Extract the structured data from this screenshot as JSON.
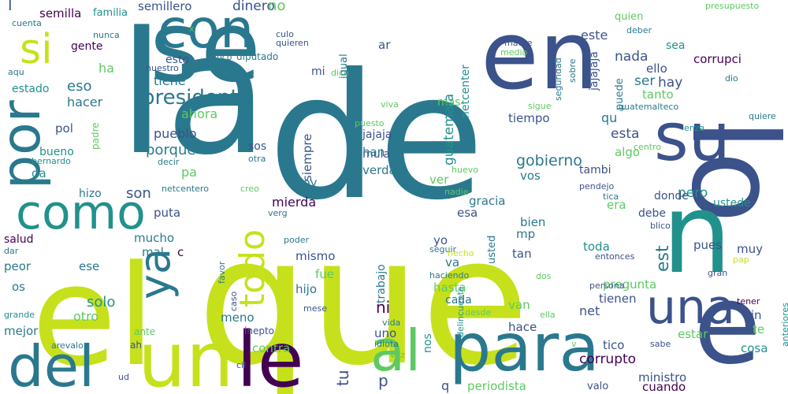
{
  "palette": {
    "dark_purple": "#440154",
    "indigo": "#3b528b",
    "teal": "#21918c",
    "green": "#5ec962",
    "lime": "#c6e11b"
  },
  "words": [
    {
      "text": "la",
      "size": 214,
      "color": "#2a788e"
    },
    {
      "text": "de",
      "size": 220,
      "color": "#2a788e"
    },
    {
      "text": "que",
      "size": 224,
      "color": "#c6e11b"
    },
    {
      "text": "el",
      "size": 176,
      "color": "#c6e11b"
    },
    {
      "text": "en",
      "size": 120,
      "color": "#3b528b"
    },
    {
      "text": "se",
      "size": 124,
      "color": "#2a788e"
    },
    {
      "text": "lo",
      "size": 150,
      "color": "#3b528b",
      "rotate": 90
    },
    {
      "text": "e",
      "size": 140,
      "color": "#3b528b"
    },
    {
      "text": "n",
      "size": 140,
      "color": "#21918c"
    },
    {
      "text": "su",
      "size": 84,
      "color": "#3b528b"
    },
    {
      "text": "con",
      "size": 68,
      "color": "#2a788e"
    },
    {
      "text": "por",
      "size": 68,
      "color": "#2a788e",
      "rotate": -90
    },
    {
      "text": "si",
      "size": 52,
      "color": "#c6e11b"
    },
    {
      "text": "como",
      "size": 60,
      "color": "#21918c"
    },
    {
      "text": "un",
      "size": 96,
      "color": "#c6e11b"
    },
    {
      "text": "del",
      "size": 72,
      "color": "#2a788e"
    },
    {
      "text": "le",
      "size": 96,
      "color": "#440154"
    },
    {
      "text": "para",
      "size": 84,
      "color": "#2a788e"
    },
    {
      "text": "al",
      "size": 72,
      "color": "#5ec962"
    },
    {
      "text": "una",
      "size": 60,
      "color": "#3b528b"
    },
    {
      "text": "ya",
      "size": 54,
      "color": "#2a788e",
      "rotate": -90
    },
    {
      "text": "todo",
      "size": 44,
      "color": "#c6e11b",
      "rotate": -90
    },
    {
      "text": "semillero",
      "size": 15,
      "color": "#3b528b"
    },
    {
      "text": "dinero",
      "size": 17,
      "color": "#3b528b"
    },
    {
      "text": "no",
      "size": 18,
      "color": "#5ec962"
    },
    {
      "text": "semilla",
      "size": 15,
      "color": "#440154"
    },
    {
      "text": "familia",
      "size": 13,
      "color": "#21918c"
    },
    {
      "text": "l",
      "size": 20,
      "color": "#3b528b"
    },
    {
      "text": "cuenta",
      "size": 11,
      "color": "#2a788e"
    },
    {
      "text": "nunca",
      "size": 11,
      "color": "#2a788e"
    },
    {
      "text": "gente",
      "size": 14,
      "color": "#440154"
    },
    {
      "text": "aqu",
      "size": 11,
      "color": "#2a788e"
    },
    {
      "text": "estado",
      "size": 14,
      "color": "#21918c"
    },
    {
      "text": "ha",
      "size": 16,
      "color": "#5ec962"
    },
    {
      "text": "eso",
      "size": 18,
      "color": "#2a788e"
    },
    {
      "text": "hacer",
      "size": 16,
      "color": "#2a788e"
    },
    {
      "text": "pol",
      "size": 15,
      "color": "#3b528b"
    },
    {
      "text": "bueno",
      "size": 14,
      "color": "#21918c"
    },
    {
      "text": "bernardo",
      "size": 11,
      "color": "#21918c"
    },
    {
      "text": "da",
      "size": 15,
      "color": "#21918c"
    },
    {
      "text": "padre",
      "size": 12,
      "color": "#5ec962",
      "rotate": -90
    },
    {
      "text": "hizo",
      "size": 14,
      "color": "#2a788e"
    },
    {
      "text": "salud",
      "size": 14,
      "color": "#440154"
    },
    {
      "text": "dar",
      "size": 11,
      "color": "#2a788e"
    },
    {
      "text": "peor",
      "size": 15,
      "color": "#2a788e"
    },
    {
      "text": "os",
      "size": 15,
      "color": "#2a788e"
    },
    {
      "text": "ese",
      "size": 15,
      "color": "#2a788e"
    },
    {
      "text": "solo",
      "size": 18,
      "color": "#21918c"
    },
    {
      "text": "otro",
      "size": 16,
      "color": "#5ec962"
    },
    {
      "text": "mejor",
      "size": 15,
      "color": "#2a788e"
    },
    {
      "text": "grande",
      "size": 11,
      "color": "#21918c"
    },
    {
      "text": "arevalo",
      "size": 11,
      "color": "#2a788e"
    },
    {
      "text": "ah",
      "size": 12,
      "color": "#3b528b"
    },
    {
      "text": "ud",
      "size": 11,
      "color": "#3b528b"
    },
    {
      "text": "ante",
      "size": 12,
      "color": "#5ec962"
    },
    {
      "text": "esto",
      "size": 14,
      "color": "#3b528b"
    },
    {
      "text": "nuestro",
      "size": 11,
      "color": "#3b528b"
    },
    {
      "text": "poco",
      "size": 11,
      "color": "#2a788e"
    },
    {
      "text": "diputado",
      "size": 12,
      "color": "#2a788e"
    },
    {
      "text": "culo",
      "size": 11,
      "color": "#3b528b"
    },
    {
      "text": "quieren",
      "size": 11,
      "color": "#3b528b"
    },
    {
      "text": "mi",
      "size": 14,
      "color": "#3b528b"
    },
    {
      "text": "dice",
      "size": 11,
      "color": "#5ec962"
    },
    {
      "text": "igual",
      "size": 13,
      "color": "#2a788e",
      "rotate": -90
    },
    {
      "text": "ar",
      "size": 15,
      "color": "#3b528b"
    },
    {
      "text": "mas",
      "size": 14,
      "color": "#5ec962"
    },
    {
      "text": "x",
      "size": 11,
      "color": "#5ec962"
    },
    {
      "text": "tiene",
      "size": 16,
      "color": "#2a788e"
    },
    {
      "text": "presidente",
      "size": 26,
      "color": "#2a788e"
    },
    {
      "text": "ahora",
      "size": 16,
      "color": "#5ec962"
    },
    {
      "text": "pueblo",
      "size": 16,
      "color": "#3b528b"
    },
    {
      "text": "porque",
      "size": 18,
      "color": "#2a788e"
    },
    {
      "text": "pa",
      "size": 16,
      "color": "#5ec962"
    },
    {
      "text": "son",
      "size": 18,
      "color": "#3b528b"
    },
    {
      "text": "netcentero",
      "size": 11,
      "color": "#2a788e"
    },
    {
      "text": "creo",
      "size": 11,
      "color": "#5ec962"
    },
    {
      "text": "decir",
      "size": 11,
      "color": "#2a788e"
    },
    {
      "text": "puta",
      "size": 15,
      "color": "#3b528b"
    },
    {
      "text": "mucho",
      "size": 15,
      "color": "#2a788e"
    },
    {
      "text": "mal",
      "size": 15,
      "color": "#2a788e"
    },
    {
      "text": "c",
      "size": 15,
      "color": "#440154"
    },
    {
      "text": "poder",
      "size": 11,
      "color": "#2a788e"
    },
    {
      "text": "favor",
      "size": 11,
      "color": "#2a788e",
      "rotate": -90
    },
    {
      "text": "caso",
      "size": 11,
      "color": "#3b528b",
      "rotate": -90
    },
    {
      "text": "meno",
      "size": 15,
      "color": "#2a788e"
    },
    {
      "text": "inepto",
      "size": 12,
      "color": "#3b528b"
    },
    {
      "text": "contra",
      "size": 15,
      "color": "#5ec962"
    },
    {
      "text": "cil",
      "size": 11,
      "color": "#3b528b"
    },
    {
      "text": "sos",
      "size": 14,
      "color": "#3b528b"
    },
    {
      "text": "otra",
      "size": 11,
      "color": "#2a788e"
    },
    {
      "text": "verg",
      "size": 11,
      "color": "#2a788e"
    },
    {
      "text": "mierda",
      "size": 16,
      "color": "#440154"
    },
    {
      "text": "fue",
      "size": 15,
      "color": "#5ec962"
    },
    {
      "text": "mismo",
      "size": 15,
      "color": "#3b528b"
    },
    {
      "text": "hijo",
      "size": 15,
      "color": "#2a788e"
    },
    {
      "text": "mese",
      "size": 11,
      "color": "#3b528b"
    },
    {
      "text": "hoy",
      "size": 15,
      "color": "#2a788e"
    },
    {
      "text": "siempre",
      "size": 15,
      "color": "#3b528b",
      "rotate": -90
    },
    {
      "text": "ni",
      "size": 20,
      "color": "#440154"
    },
    {
      "text": "tu",
      "size": 20,
      "color": "#3b528b",
      "rotate": -90
    },
    {
      "text": "guatemala",
      "size": 17,
      "color": "#21918c",
      "rotate": -90
    },
    {
      "text": "netcenter",
      "size": 14,
      "color": "#21918c",
      "rotate": -90
    },
    {
      "text": "jajaja",
      "size": 14,
      "color": "#3b528b"
    },
    {
      "text": "mula",
      "size": 14,
      "color": "#3b528b"
    },
    {
      "text": "han",
      "size": 15,
      "color": "#2a788e"
    },
    {
      "text": "verdad",
      "size": 15,
      "color": "#2a788e"
    },
    {
      "text": "viva",
      "size": 11,
      "color": "#5ec962"
    },
    {
      "text": "puesto",
      "size": 11,
      "color": "#5ec962"
    },
    {
      "text": "ver",
      "size": 15,
      "color": "#5ec962"
    },
    {
      "text": "gracia",
      "size": 15,
      "color": "#2a788e"
    },
    {
      "text": "esa",
      "size": 15,
      "color": "#3b528b"
    },
    {
      "text": "yo",
      "size": 15,
      "color": "#3b528b"
    },
    {
      "text": "seguir",
      "size": 11,
      "color": "#2a788e"
    },
    {
      "text": "trabajo",
      "size": 14,
      "color": "#2a788e",
      "rotate": -90
    },
    {
      "text": "usted",
      "size": 13,
      "color": "#2a788e",
      "rotate": -90
    },
    {
      "text": "hecho",
      "size": 11,
      "color": "#c6e11b"
    },
    {
      "text": "va",
      "size": 15,
      "color": "#2a788e"
    },
    {
      "text": "hasta",
      "size": 15,
      "color": "#5ec962"
    },
    {
      "text": "haciendo",
      "size": 11,
      "color": "#2a788e"
    },
    {
      "text": "delincuente",
      "size": 11,
      "color": "#21918c",
      "rotate": -90
    },
    {
      "text": "cada",
      "size": 14,
      "color": "#2a788e"
    },
    {
      "text": "uno",
      "size": 15,
      "color": "#3b528b"
    },
    {
      "text": "desde",
      "size": 11,
      "color": "#5ec962"
    },
    {
      "text": "vida",
      "size": 11,
      "color": "#2a788e"
    },
    {
      "text": "idiota",
      "size": 11,
      "color": "#2a788e"
    },
    {
      "text": "vez",
      "size": 11,
      "color": "#5ec962"
    },
    {
      "text": "nos",
      "size": 14,
      "color": "#21918c",
      "rotate": -90
    },
    {
      "text": "p",
      "size": 20,
      "color": "#3b528b"
    },
    {
      "text": "q",
      "size": 16,
      "color": "#3b528b"
    },
    {
      "text": "periodista",
      "size": 15,
      "color": "#5ec962"
    },
    {
      "text": "jajajaja",
      "size": 14,
      "color": "#3b528b",
      "rotate": -90
    },
    {
      "text": "quien",
      "size": 13,
      "color": "#5ec962"
    },
    {
      "text": "este",
      "size": 16,
      "color": "#3b528b"
    },
    {
      "text": "deber",
      "size": 11,
      "color": "#2a788e"
    },
    {
      "text": "madre",
      "size": 11,
      "color": "#3b528b"
    },
    {
      "text": "medio",
      "size": 11,
      "color": "#5ec962"
    },
    {
      "text": "seguridad",
      "size": 11,
      "color": "#2a788e",
      "rotate": -90
    },
    {
      "text": "sobre",
      "size": 11,
      "color": "#2a788e",
      "rotate": -90
    },
    {
      "text": "presupuesto",
      "size": 11,
      "color": "#5ec962"
    },
    {
      "text": "hay",
      "size": 17,
      "color": "#3b528b"
    },
    {
      "text": "nada",
      "size": 17,
      "color": "#3b528b"
    },
    {
      "text": "sea",
      "size": 14,
      "color": "#21918c"
    },
    {
      "text": "corrupci",
      "size": 15,
      "color": "#440154"
    },
    {
      "text": "ello",
      "size": 15,
      "color": "#3b528b"
    },
    {
      "text": "ser",
      "size": 17,
      "color": "#2a788e"
    },
    {
      "text": "tanto",
      "size": 15,
      "color": "#5ec962"
    },
    {
      "text": "dio",
      "size": 11,
      "color": "#2a788e"
    },
    {
      "text": "puede",
      "size": 13,
      "color": "#2a788e",
      "rotate": -90
    },
    {
      "text": "guatemalteco",
      "size": 11,
      "color": "#2a788e"
    },
    {
      "text": "sigue",
      "size": 11,
      "color": "#5ec962"
    },
    {
      "text": "qu",
      "size": 16,
      "color": "#2a788e"
    },
    {
      "text": "tiempo",
      "size": 15,
      "color": "#3b528b"
    },
    {
      "text": "esta",
      "size": 17,
      "color": "#3b528b"
    },
    {
      "text": "algo",
      "size": 15,
      "color": "#5ec962"
    },
    {
      "text": "gobierno",
      "size": 19,
      "color": "#2a788e"
    },
    {
      "text": "vos",
      "size": 15,
      "color": "#2a788e"
    },
    {
      "text": "tambi",
      "size": 14,
      "color": "#3b528b"
    },
    {
      "text": "quiere",
      "size": 11,
      "color": "#2a788e"
    },
    {
      "text": "enza",
      "size": 11,
      "color": "#21918c"
    },
    {
      "text": "centro",
      "size": 11,
      "color": "#5ec962"
    },
    {
      "text": "huevo",
      "size": 11,
      "color": "#5ec962"
    },
    {
      "text": "nadie",
      "size": 11,
      "color": "#5ec962"
    },
    {
      "text": "pendejo",
      "size": 11,
      "color": "#3b528b"
    },
    {
      "text": "pero",
      "size": 17,
      "color": "#21918c"
    },
    {
      "text": "tica",
      "size": 11,
      "color": "#2a788e"
    },
    {
      "text": "ustede",
      "size": 14,
      "color": "#21918c"
    },
    {
      "text": "era",
      "size": 15,
      "color": "#5ec962"
    },
    {
      "text": "donde",
      "size": 14,
      "color": "#3b528b"
    },
    {
      "text": "debe",
      "size": 14,
      "color": "#3b528b"
    },
    {
      "text": "bien",
      "size": 15,
      "color": "#2a788e"
    },
    {
      "text": "blico",
      "size": 11,
      "color": "#3b528b"
    },
    {
      "text": "mp",
      "size": 15,
      "color": "#2a788e"
    },
    {
      "text": "est",
      "size": 22,
      "color": "#2a788e",
      "rotate": -90
    },
    {
      "text": "toda",
      "size": 15,
      "color": "#21918c"
    },
    {
      "text": "pues",
      "size": 15,
      "color": "#3b528b"
    },
    {
      "text": "muy",
      "size": 15,
      "color": "#3b528b"
    },
    {
      "text": "tan",
      "size": 15,
      "color": "#3b528b"
    },
    {
      "text": "entonces",
      "size": 11,
      "color": "#3b528b"
    },
    {
      "text": "pap",
      "size": 11,
      "color": "#c6e11b"
    },
    {
      "text": "gran",
      "size": 11,
      "color": "#3b528b"
    },
    {
      "text": "dos",
      "size": 11,
      "color": "#5ec962"
    },
    {
      "text": "pregunta",
      "size": 15,
      "color": "#5ec962"
    },
    {
      "text": "persona",
      "size": 11,
      "color": "#3b528b"
    },
    {
      "text": "tienen",
      "size": 15,
      "color": "#3b528b"
    },
    {
      "text": "net",
      "size": 16,
      "color": "#3b528b"
    },
    {
      "text": "van",
      "size": 15,
      "color": "#5ec962"
    },
    {
      "text": "hace",
      "size": 15,
      "color": "#3b528b"
    },
    {
      "text": "ella",
      "size": 11,
      "color": "#5ec962"
    },
    {
      "text": "tener",
      "size": 11,
      "color": "#440154"
    },
    {
      "text": "anteriores",
      "size": 11,
      "color": "#21918c",
      "rotate": -90
    },
    {
      "text": "sin",
      "size": 15,
      "color": "#3b528b"
    },
    {
      "text": "te",
      "size": 15,
      "color": "#5ec962"
    },
    {
      "text": "estar",
      "size": 15,
      "color": "#5ec962"
    },
    {
      "text": "tico",
      "size": 15,
      "color": "#3b528b"
    },
    {
      "text": "sabe",
      "size": 11,
      "color": "#3b528b"
    },
    {
      "text": "v",
      "size": 11,
      "color": "#5ec962"
    },
    {
      "text": "corrupto",
      "size": 17,
      "color": "#440154"
    },
    {
      "text": "ministro",
      "size": 15,
      "color": "#3b528b"
    },
    {
      "text": "cosa",
      "size": 15,
      "color": "#21918c"
    },
    {
      "text": "valo",
      "size": 13,
      "color": "#3b528b"
    },
    {
      "text": "cuando",
      "size": 15,
      "color": "#440154"
    }
  ]
}
